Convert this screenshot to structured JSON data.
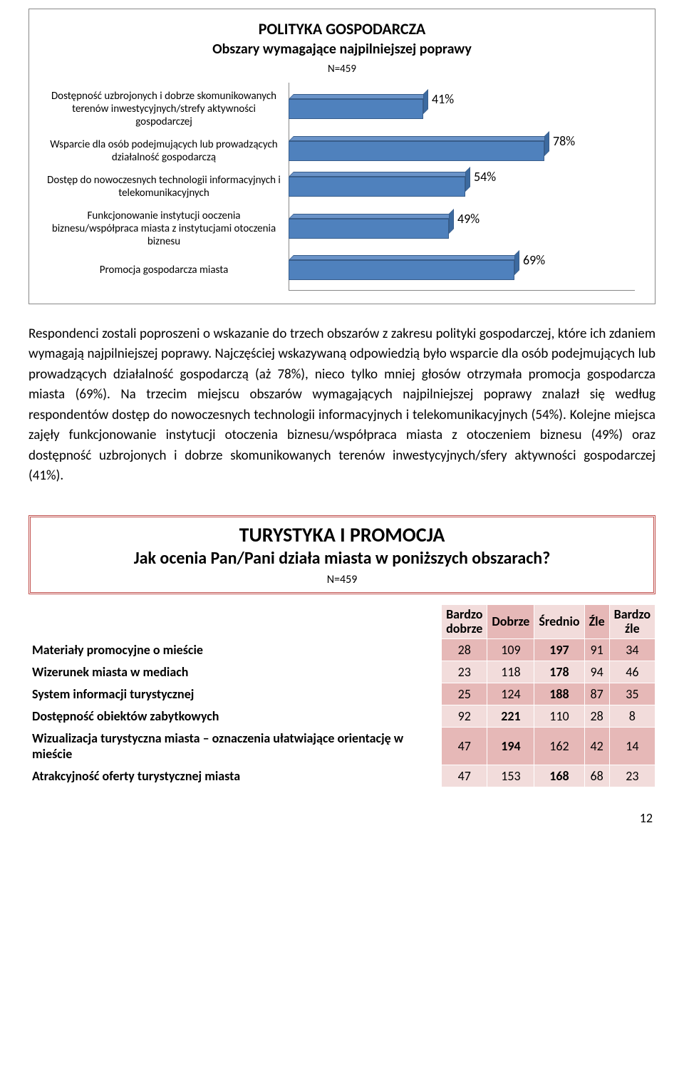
{
  "chart": {
    "title": "POLITYKA GOSPODARCZA",
    "subtitle": "Obszary wymagające najpilniejszej poprawy",
    "n_label": "N=459",
    "max_pct": 100,
    "bar_color": "#4f81bd",
    "bar_top_color": "#6a93c8",
    "bar_side_color": "#3c6aa0",
    "items": [
      {
        "label": "Dostępność uzbrojonych i dobrze skomunikowanych terenów inwestycyjnych/strefy aktywności gospodarczej",
        "value": 41,
        "value_text": "41%"
      },
      {
        "label": "Wsparcie dla osób podejmujących lub prowadzących działalność gospodarczą",
        "value": 78,
        "value_text": "78%"
      },
      {
        "label": "Dostęp do nowoczesnych technologii informacyjnych i telekomunikacyjnych",
        "value": 54,
        "value_text": "54%"
      },
      {
        "label": "Funkcjonowanie instytucji ooczenia biznesu/współpraca miasta z instytucjami otoczenia biznesu",
        "value": 49,
        "value_text": "49%"
      },
      {
        "label": "Promocja gospodarcza miasta",
        "value": 69,
        "value_text": "69%"
      }
    ]
  },
  "paragraph": "Respondenci zostali poproszeni o wskazanie do trzech obszarów z zakresu polityki gospodarczej, które ich zdaniem wymagają najpilniejszej poprawy. Najczęściej wskazywaną odpowiedzią było wsparcie dla osób podejmujących lub prowadzących działalność gospodarczą (aż 78%), nieco tylko mniej głosów otrzymała promocja gospodarcza miasta (69%). Na trzecim miejscu obszarów wymagających najpilniejszej poprawy znalazł się według respondentów dostęp do nowoczesnych technologii informacyjnych i telekomunikacyjnych (54%). Kolejne miejsca zajęły funkcjonowanie instytucji otoczenia biznesu/współpraca miasta z otoczeniem biznesu (49%) oraz dostępność uzbrojonych i dobrze skomunikowanych terenów inwestycyjnych/sfery aktywności gospodarczej (41%).",
  "section": {
    "title": "TURYSTYKA I PROMOCJA",
    "subtitle": "Jak ocenia Pan/Pani działa miasta w poniższych obszarach?",
    "n_label": "N=459"
  },
  "table": {
    "header_bg_odd": "#f2dcdb",
    "header_bg_even": "#e6b8b7",
    "row_odd_cell": "#e6b8b7",
    "row_even_cell": "#f2dcdb",
    "columns": [
      "Bardzo dobrze",
      "Dobrze",
      "Średnio",
      "Źle",
      "Bardzo źle"
    ],
    "rows": [
      {
        "label": "Materiały promocyjne o mieście",
        "cells": [
          "28",
          "109",
          "197",
          "91",
          "34"
        ],
        "bold_idx": 2
      },
      {
        "label": "Wizerunek miasta w mediach",
        "cells": [
          "23",
          "118",
          "178",
          "94",
          "46"
        ],
        "bold_idx": 2
      },
      {
        "label": "System informacji turystycznej",
        "cells": [
          "25",
          "124",
          "188",
          "87",
          "35"
        ],
        "bold_idx": 2
      },
      {
        "label": "Dostępność obiektów zabytkowych",
        "cells": [
          "92",
          "221",
          "110",
          "28",
          "8"
        ],
        "bold_idx": 1
      },
      {
        "label": "Wizualizacja turystyczna miasta – oznaczenia ułatwiające orientację w mieście",
        "cells": [
          "47",
          "194",
          "162",
          "42",
          "14"
        ],
        "bold_idx": 1
      },
      {
        "label": "Atrakcyjność oferty turystycznej miasta",
        "cells": [
          "47",
          "153",
          "168",
          "68",
          "23"
        ],
        "bold_idx": 2
      }
    ]
  },
  "page_number": "12"
}
